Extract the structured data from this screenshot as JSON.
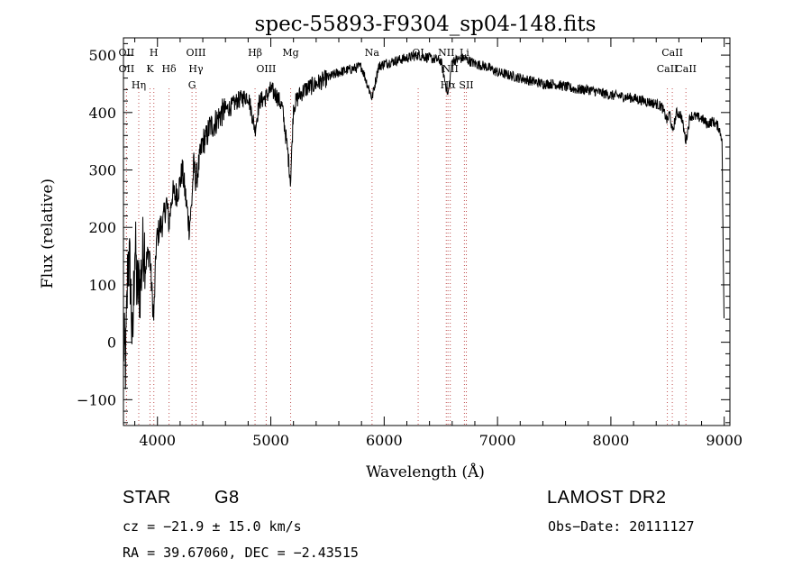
{
  "chart_data": {
    "type": "line",
    "title": "spec-55893-F9304_sp04-148.fits",
    "xlabel": "Wavelength (Å)",
    "ylabel": "Flux (relative)",
    "xlim": [
      3700,
      9050
    ],
    "ylim": [
      -145,
      530
    ],
    "xticks": [
      4000,
      5000,
      6000,
      7000,
      8000,
      9000
    ],
    "yticks": [
      -100,
      0,
      100,
      200,
      300,
      400,
      500
    ],
    "grid": false,
    "series": [
      {
        "x": [
          3700,
          3720,
          3740,
          3760,
          3780,
          3800,
          3820,
          3850,
          3880,
          3900,
          3930,
          3950,
          3968,
          3990,
          4020,
          4050,
          4080,
          4102,
          4130,
          4160,
          4190,
          4220,
          4250,
          4280,
          4300,
          4320,
          4340,
          4370,
          4400,
          4430,
          4460,
          4500,
          4550,
          4600,
          4650,
          4700,
          4750,
          4800,
          4861,
          4900,
          4950,
          5000,
          5050,
          5100,
          5150,
          5175,
          5200,
          5250,
          5300,
          5400,
          5500,
          5600,
          5700,
          5800,
          5893,
          5950,
          6000,
          6100,
          6200,
          6300,
          6400,
          6500,
          6563,
          6600,
          6700,
          6800,
          6900,
          7000,
          7100,
          7200,
          7300,
          7400,
          7500,
          7600,
          7700,
          7800,
          7900,
          8000,
          8100,
          8200,
          8300,
          8400,
          8450,
          8498,
          8520,
          8542,
          8580,
          8620,
          8662,
          8700,
          8800,
          8850,
          8900,
          8950,
          8980,
          9000
        ],
        "y": [
          0,
          -40,
          150,
          120,
          -20,
          180,
          90,
          100,
          180,
          140,
          160,
          90,
          40,
          175,
          200,
          210,
          245,
          205,
          260,
          255,
          270,
          300,
          250,
          200,
          235,
          310,
          280,
          315,
          350,
          355,
          375,
          380,
          395,
          405,
          410,
          420,
          425,
          430,
          370,
          420,
          425,
          440,
          430,
          410,
          330,
          280,
          410,
          430,
          440,
          450,
          460,
          470,
          475,
          480,
          425,
          480,
          485,
          490,
          495,
          500,
          495,
          490,
          430,
          490,
          495,
          485,
          480,
          470,
          465,
          460,
          455,
          450,
          450,
          445,
          440,
          440,
          435,
          430,
          428,
          425,
          420,
          415,
          410,
          385,
          400,
          365,
          400,
          395,
          350,
          395,
          390,
          380,
          385,
          375,
          355,
          0
        ]
      }
    ],
    "lines": [
      {
        "label": "OII",
        "wavelength": 3727
      },
      {
        "label": "OII",
        "wavelength": 3727
      },
      {
        "label": "Hη",
        "wavelength": 3835
      },
      {
        "label": "H",
        "wavelength": 3968
      },
      {
        "label": "K",
        "wavelength": 3934
      },
      {
        "label": "Hδ",
        "wavelength": 4102
      },
      {
        "label": "OIII",
        "wavelength": 4340
      },
      {
        "label": "Hγ",
        "wavelength": 4340
      },
      {
        "label": "G",
        "wavelength": 4305
      },
      {
        "label": "Hβ",
        "wavelength": 4861
      },
      {
        "label": "OIII",
        "wavelength": 4959
      },
      {
        "label": "Mg",
        "wavelength": 5175
      },
      {
        "label": "Na",
        "wavelength": 5893
      },
      {
        "label": "OI",
        "wavelength": 6300
      },
      {
        "label": "NII",
        "wavelength": 6548
      },
      {
        "label": "NII",
        "wavelength": 6583
      },
      {
        "label": "Hα",
        "wavelength": 6563
      },
      {
        "label": "Li",
        "wavelength": 6708
      },
      {
        "label": "SII",
        "wavelength": 6725
      },
      {
        "label": "CaII",
        "wavelength": 8542
      },
      {
        "label": "CaII",
        "wavelength": 8498
      },
      {
        "label": "CaII",
        "wavelength": 8662
      }
    ]
  },
  "info": {
    "object_class": "STAR",
    "subclass": "G8",
    "survey": "LAMOST DR2",
    "cz": "cz = −21.9 ± 15.0 km/s",
    "obs_date": "Obs−Date: 20111127",
    "coords": "RA =  39.67060, DEC =  −2.43515"
  }
}
